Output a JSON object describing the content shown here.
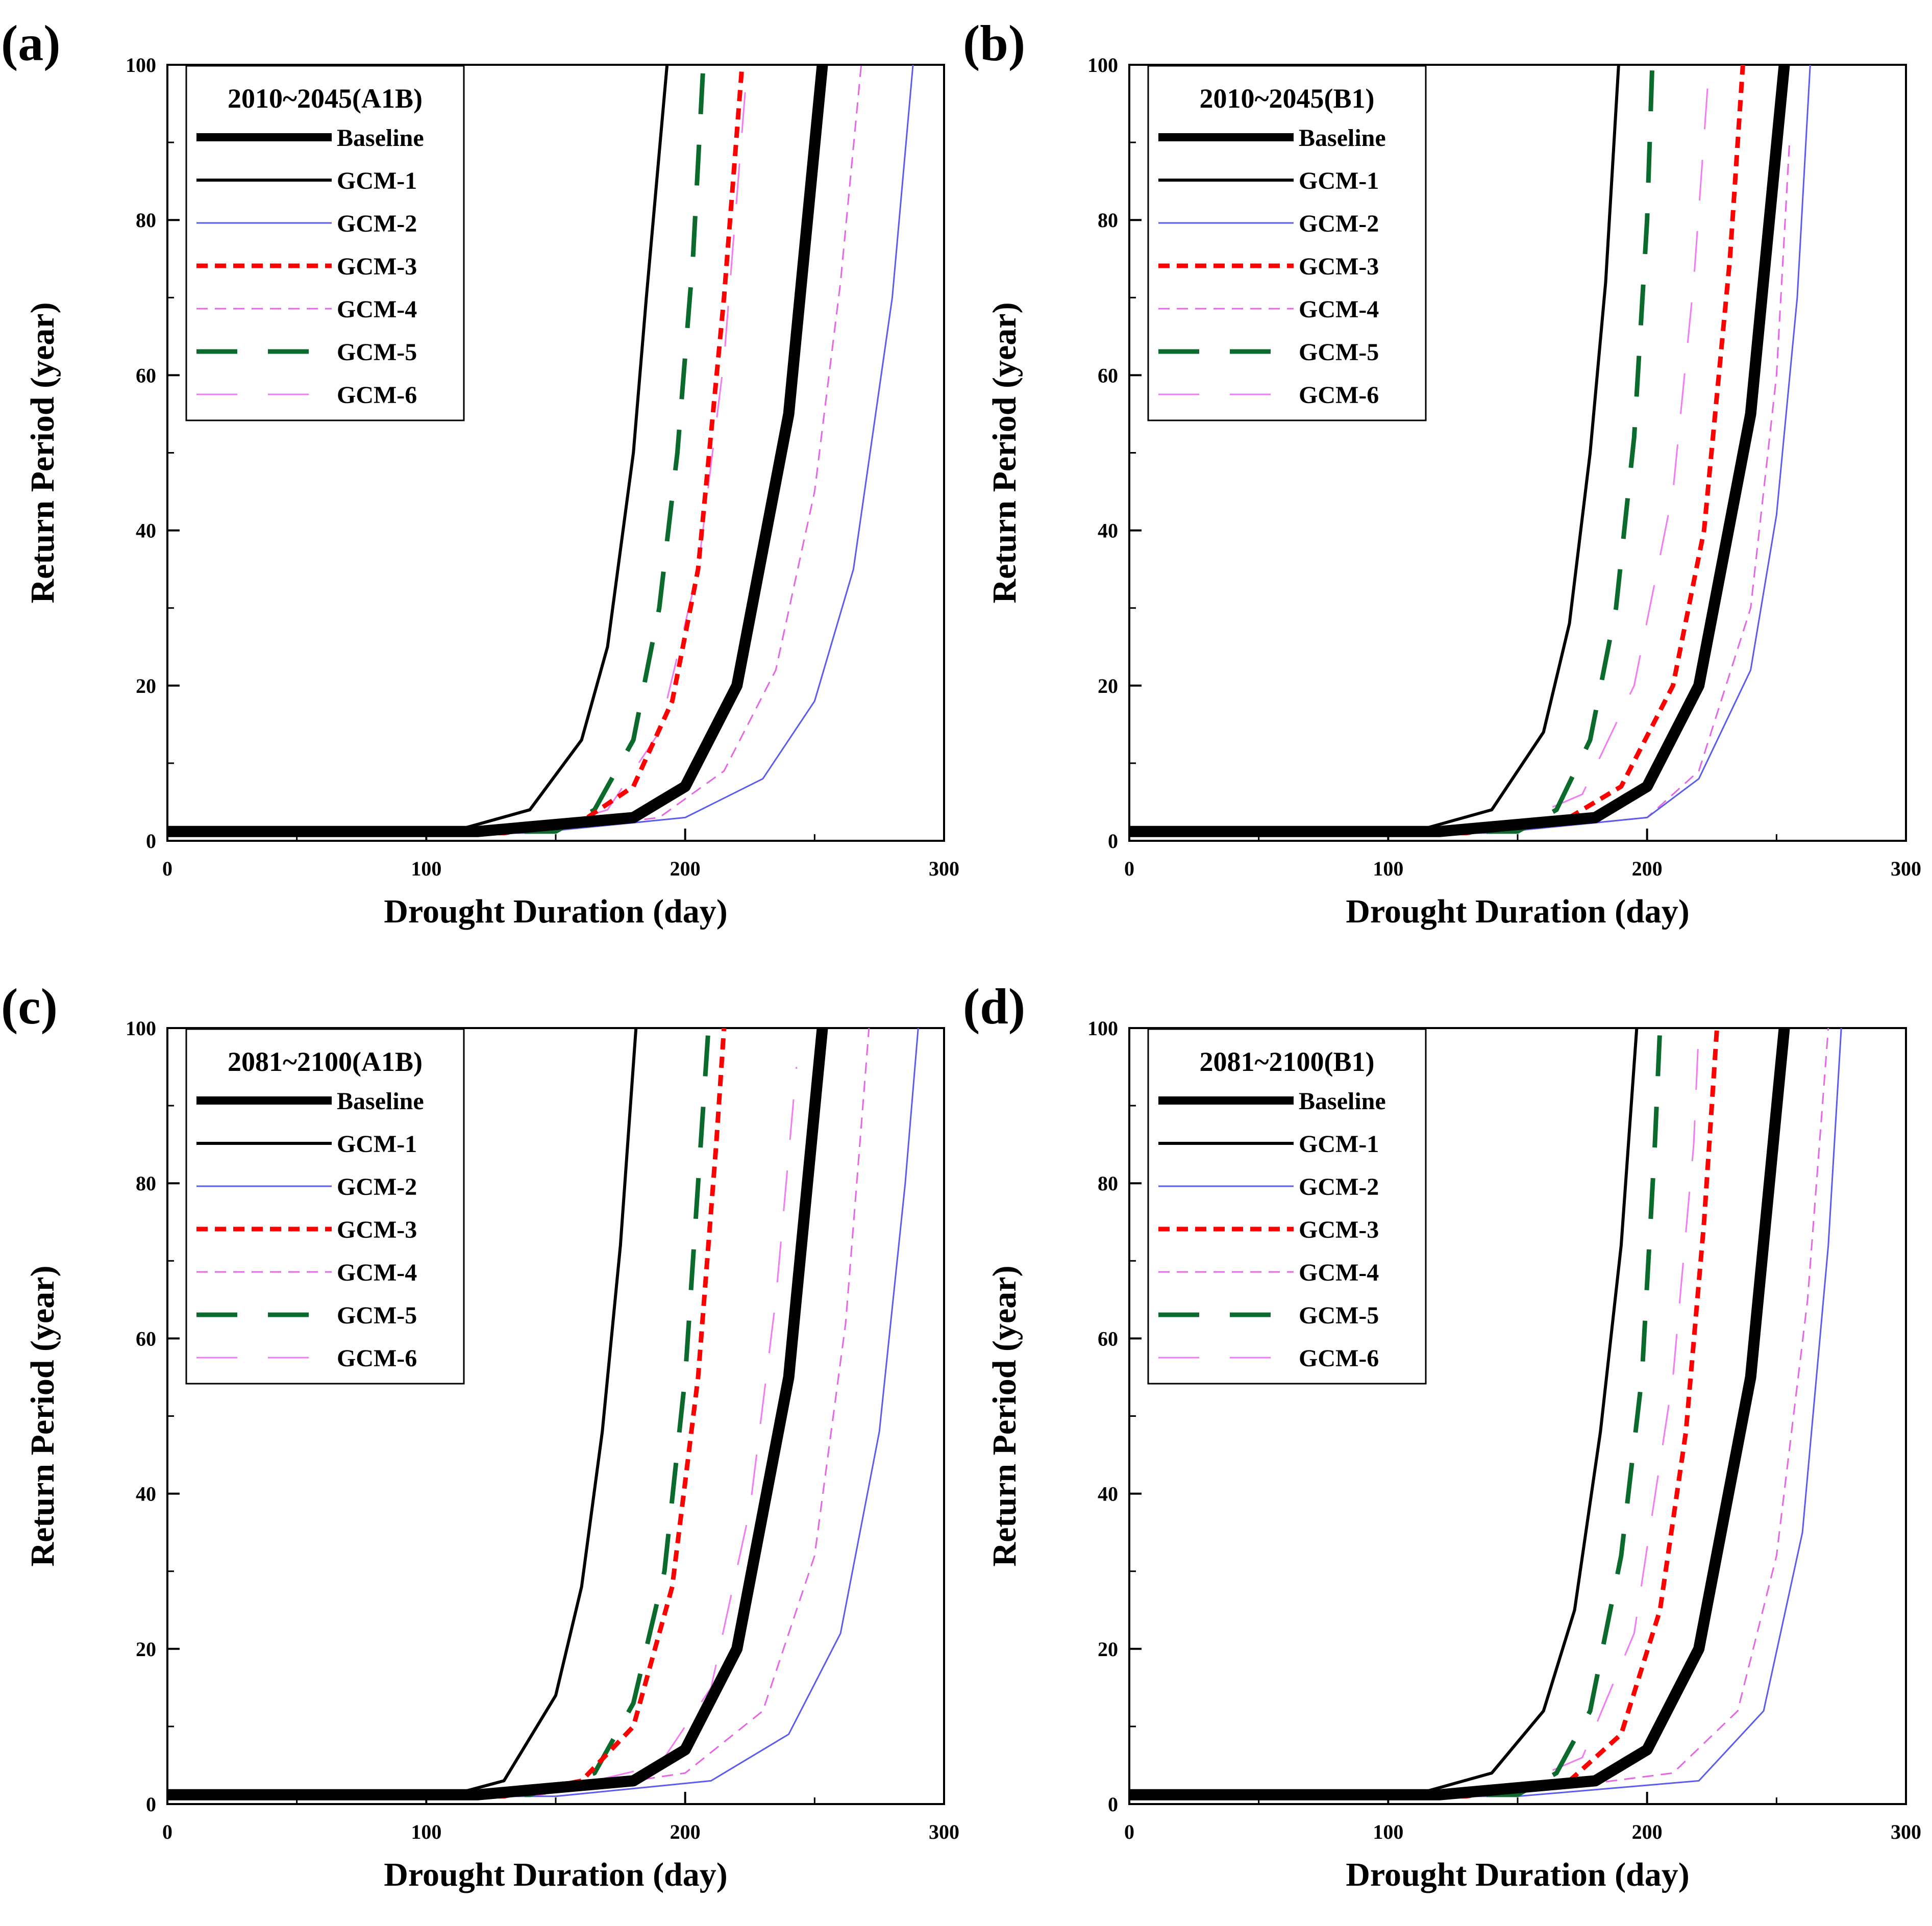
{
  "figure": {
    "series_styles": {
      "Baseline": {
        "color": "#000000",
        "dash": "solid",
        "weight": "very thick"
      },
      "GCM-1": {
        "color": "#000000",
        "dash": "solid",
        "weight": "medium"
      },
      "GCM-2": {
        "color": "#5b5bf0",
        "dash": "solid",
        "weight": "thin"
      },
      "GCM-3": {
        "color": "#ff0000",
        "dash": "short dash",
        "weight": "thick"
      },
      "GCM-4": {
        "color": "#e667e6",
        "dash": "short dash",
        "weight": "thin"
      },
      "GCM-5": {
        "color": "#0a6b2c",
        "dash": "long dash",
        "weight": "thick"
      },
      "GCM-6": {
        "color": "#f27af2",
        "dash": "long dash",
        "weight": "thin"
      }
    }
  },
  "chart_data": [
    {
      "panel": "(a)",
      "type": "line",
      "legend_title": "2010~2045(A1B)",
      "legend_position": "top-left",
      "xlabel": "Drought Duration (day)",
      "ylabel": "Return Period (year)",
      "xlim": [
        0,
        300
      ],
      "ylim": [
        0,
        100
      ],
      "xticks": [
        0,
        100,
        200,
        300
      ],
      "yticks": [
        0,
        20,
        40,
        60,
        80,
        100
      ],
      "series": [
        {
          "name": "Baseline",
          "x": [
            0,
            120,
            180,
            200,
            220,
            240,
            253
          ],
          "y": [
            1.2,
            1.2,
            3,
            7,
            20,
            55,
            100
          ]
        },
        {
          "name": "GCM-1",
          "x": [
            0,
            110,
            140,
            160,
            170,
            180,
            185,
            193
          ],
          "y": [
            1.2,
            1.2,
            4,
            13,
            25,
            50,
            70,
            100
          ]
        },
        {
          "name": "GCM-2",
          "x": [
            0,
            140,
            200,
            230,
            250,
            265,
            280,
            288
          ],
          "y": [
            1,
            1,
            3,
            8,
            18,
            35,
            70,
            100
          ]
        },
        {
          "name": "GCM-3",
          "x": [
            0,
            130,
            160,
            180,
            195,
            205,
            215,
            222
          ],
          "y": [
            1,
            1,
            2.5,
            7,
            18,
            35,
            70,
            100
          ]
        },
        {
          "name": "GCM-4",
          "x": [
            0,
            140,
            190,
            215,
            235,
            250,
            260,
            268
          ],
          "y": [
            1,
            1,
            3,
            9,
            22,
            45,
            72,
            100
          ]
        },
        {
          "name": "GCM-5",
          "x": [
            0,
            150,
            165,
            180,
            190,
            197,
            203,
            207
          ],
          "y": [
            1.2,
            1.2,
            4,
            13,
            30,
            50,
            75,
            100
          ]
        },
        {
          "name": "GCM-6",
          "x": [
            0,
            140,
            170,
            190,
            205,
            215,
            224
          ],
          "y": [
            1,
            1,
            4,
            14,
            35,
            62,
            100
          ]
        }
      ]
    },
    {
      "panel": "(b)",
      "type": "line",
      "legend_title": "2010~2045(B1)",
      "legend_position": "top-left",
      "xlabel": "Drought Duration (day)",
      "ylabel": "Return Period (year)",
      "xlim": [
        0,
        300
      ],
      "ylim": [
        0,
        100
      ],
      "xticks": [
        0,
        100,
        200,
        300
      ],
      "yticks": [
        0,
        20,
        40,
        60,
        80,
        100
      ],
      "series": [
        {
          "name": "Baseline",
          "x": [
            0,
            120,
            180,
            200,
            220,
            240,
            253
          ],
          "y": [
            1.2,
            1.2,
            3,
            7,
            20,
            55,
            100
          ]
        },
        {
          "name": "GCM-1",
          "x": [
            0,
            110,
            140,
            160,
            170,
            178,
            184,
            189
          ],
          "y": [
            1.2,
            1.2,
            4,
            14,
            28,
            50,
            72,
            100
          ]
        },
        {
          "name": "GCM-2",
          "x": [
            0,
            140,
            200,
            220,
            240,
            250,
            258,
            263
          ],
          "y": [
            1,
            1,
            3,
            8,
            22,
            42,
            70,
            100
          ]
        },
        {
          "name": "GCM-3",
          "x": [
            0,
            130,
            170,
            190,
            210,
            222,
            232,
            237
          ],
          "y": [
            1,
            1,
            3,
            7,
            20,
            40,
            75,
            100
          ]
        },
        {
          "name": "GCM-4",
          "x": [
            0,
            140,
            200,
            220,
            240,
            250,
            255
          ],
          "y": [
            1,
            1,
            3,
            9,
            30,
            60,
            90
          ]
        },
        {
          "name": "GCM-5",
          "x": [
            0,
            150,
            165,
            178,
            188,
            195,
            200,
            202
          ],
          "y": [
            1.2,
            1.2,
            4,
            13,
            30,
            52,
            80,
            100
          ]
        },
        {
          "name": "GCM-6",
          "x": [
            0,
            140,
            175,
            195,
            210,
            218,
            224
          ],
          "y": [
            1,
            1,
            6,
            20,
            45,
            72,
            100
          ]
        }
      ]
    },
    {
      "panel": "(c)",
      "type": "line",
      "legend_title": "2081~2100(A1B)",
      "legend_position": "top-left",
      "xlabel": "Drought Duration (day)",
      "ylabel": "Return Period (year)",
      "xlim": [
        0,
        300
      ],
      "ylim": [
        0,
        100
      ],
      "xticks": [
        0,
        100,
        200,
        300
      ],
      "yticks": [
        0,
        20,
        40,
        60,
        80,
        100
      ],
      "series": [
        {
          "name": "Baseline",
          "x": [
            0,
            120,
            180,
            200,
            220,
            240,
            253
          ],
          "y": [
            1.2,
            1.2,
            3,
            7,
            20,
            55,
            100
          ]
        },
        {
          "name": "GCM-1",
          "x": [
            0,
            110,
            130,
            150,
            160,
            168,
            175,
            181
          ],
          "y": [
            1.2,
            1.2,
            3,
            14,
            28,
            48,
            72,
            100
          ]
        },
        {
          "name": "GCM-2",
          "x": [
            0,
            150,
            210,
            240,
            260,
            275,
            285,
            290
          ],
          "y": [
            1,
            1,
            3,
            9,
            22,
            48,
            80,
            100
          ]
        },
        {
          "name": "GCM-3",
          "x": [
            0,
            130,
            160,
            180,
            195,
            205,
            212,
            215
          ],
          "y": [
            1,
            1,
            3,
            10,
            28,
            55,
            85,
            100
          ]
        },
        {
          "name": "GCM-4",
          "x": [
            0,
            140,
            200,
            230,
            250,
            262,
            271
          ],
          "y": [
            1,
            1,
            4,
            12,
            32,
            62,
            100
          ]
        },
        {
          "name": "GCM-5",
          "x": [
            0,
            140,
            165,
            180,
            192,
            200,
            206,
            209
          ],
          "y": [
            1.2,
            1.2,
            4,
            13,
            30,
            55,
            85,
            100
          ]
        },
        {
          "name": "GCM-6",
          "x": [
            0,
            140,
            190,
            210,
            225,
            235,
            243
          ],
          "y": [
            1,
            1,
            5,
            15,
            38,
            65,
            95
          ]
        }
      ]
    },
    {
      "panel": "(d)",
      "type": "line",
      "legend_title": "2081~2100(B1)",
      "legend_position": "top-left",
      "xlabel": "Drought Duration (day)",
      "ylabel": "Return Period (year)",
      "xlim": [
        0,
        300
      ],
      "ylim": [
        0,
        100
      ],
      "xticks": [
        0,
        100,
        200,
        300
      ],
      "yticks": [
        0,
        20,
        40,
        60,
        80,
        100
      ],
      "series": [
        {
          "name": "Baseline",
          "x": [
            0,
            120,
            180,
            200,
            220,
            240,
            253
          ],
          "y": [
            1.2,
            1.2,
            3,
            7,
            20,
            55,
            100
          ]
        },
        {
          "name": "GCM-1",
          "x": [
            0,
            110,
            140,
            160,
            172,
            182,
            190,
            196
          ],
          "y": [
            1.2,
            1.2,
            4,
            12,
            25,
            48,
            72,
            100
          ]
        },
        {
          "name": "GCM-2",
          "x": [
            0,
            150,
            220,
            245,
            260,
            270,
            275
          ],
          "y": [
            1,
            1,
            3,
            12,
            35,
            72,
            100
          ]
        },
        {
          "name": "GCM-3",
          "x": [
            0,
            130,
            170,
            190,
            205,
            215,
            222,
            227
          ],
          "y": [
            1,
            1,
            3,
            9,
            25,
            48,
            75,
            100
          ]
        },
        {
          "name": "GCM-4",
          "x": [
            0,
            140,
            210,
            235,
            250,
            262,
            270
          ],
          "y": [
            1,
            1,
            4,
            12,
            32,
            65,
            100
          ]
        },
        {
          "name": "GCM-5",
          "x": [
            0,
            150,
            165,
            178,
            190,
            198,
            203,
            205
          ],
          "y": [
            1.2,
            1.2,
            4,
            12,
            32,
            55,
            85,
            100
          ]
        },
        {
          "name": "GCM-6",
          "x": [
            0,
            140,
            175,
            195,
            210,
            218,
            220
          ],
          "y": [
            1,
            1,
            6,
            22,
            55,
            85,
            100
          ]
        }
      ]
    }
  ]
}
